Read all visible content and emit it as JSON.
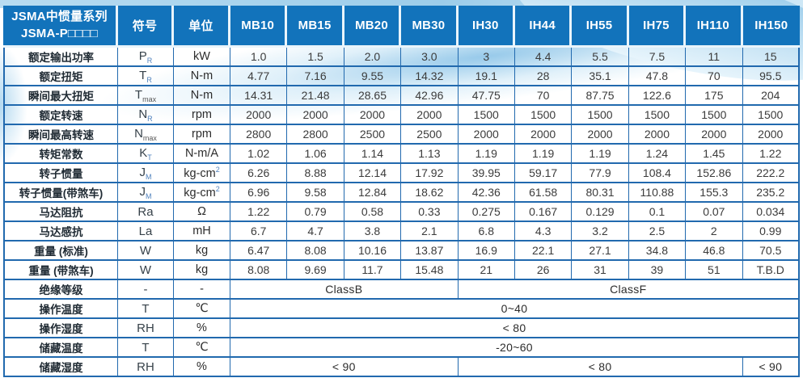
{
  "colors": {
    "header_bg": "#1273bb",
    "grid_line": "#2169ae",
    "wave_light_blue": "#a9d4ee",
    "header_text": "#ffffff",
    "body_text": "#3a3a3a",
    "subscript_blue": "#4f81bd"
  },
  "header": {
    "title_line1": "JSMA中惯量系列",
    "title_line2": "JSMA-P□□□□",
    "symbol_col": "符号",
    "unit_col": "单位",
    "models": [
      "MB10",
      "MB15",
      "MB20",
      "MB30",
      "IH30",
      "IH44",
      "IH55",
      "IH75",
      "IH110",
      "IH150"
    ]
  },
  "rows": [
    {
      "label": "额定输出功率",
      "sym": "P",
      "sub": "R",
      "sub_blue": true,
      "unit": "kW",
      "values": [
        "1.0",
        "1.5",
        "2.0",
        "3.0",
        "3",
        "4.4",
        "5.5",
        "7.5",
        "11",
        "15"
      ]
    },
    {
      "label": "额定扭矩",
      "sym": "T",
      "sub": "R",
      "sub_blue": true,
      "unit": "N-m",
      "values": [
        "4.77",
        "7.16",
        "9.55",
        "14.32",
        "19.1",
        "28",
        "35.1",
        "47.8",
        "70",
        "95.5"
      ]
    },
    {
      "label": "瞬间最大扭矩",
      "sym": "T",
      "sub": "max",
      "sub_blue": false,
      "unit": "N-m",
      "values": [
        "14.31",
        "21.48",
        "28.65",
        "42.96",
        "47.75",
        "70",
        "87.75",
        "122.6",
        "175",
        "204"
      ]
    },
    {
      "label": "额定转速",
      "sym": "N",
      "sub": "R",
      "sub_blue": true,
      "unit": "rpm",
      "values": [
        "2000",
        "2000",
        "2000",
        "2000",
        "1500",
        "1500",
        "1500",
        "1500",
        "1500",
        "1500"
      ]
    },
    {
      "label": "瞬间最高转速",
      "sym": "N",
      "sub": "max",
      "sub_blue": false,
      "unit": "rpm",
      "values": [
        "2800",
        "2800",
        "2500",
        "2500",
        "2000",
        "2000",
        "2000",
        "2000",
        "2000",
        "2000"
      ]
    },
    {
      "label": "转矩常数",
      "sym": "K",
      "sub": "T",
      "sub_blue": true,
      "unit": "N-m/A",
      "values": [
        "1.02",
        "1.06",
        "1.14",
        "1.13",
        "1.19",
        "1.19",
        "1.19",
        "1.24",
        "1.45",
        "1.22"
      ]
    },
    {
      "label": "转子惯量",
      "sym": "J",
      "sub": "M",
      "sub_blue": true,
      "unit": "kg-cm",
      "unit_sup": "2",
      "values": [
        "6.26",
        "8.88",
        "12.14",
        "17.92",
        "39.95",
        "59.17",
        "77.9",
        "108.4",
        "152.86",
        "222.2"
      ]
    },
    {
      "label": "转子惯量(带煞车)",
      "sym": "J",
      "sub": "M",
      "sub_blue": true,
      "unit": "kg-cm",
      "unit_sup": "2",
      "values": [
        "6.96",
        "9.58",
        "12.84",
        "18.62",
        "42.36",
        "61.58",
        "80.31",
        "110.88",
        "155.3",
        "235.2"
      ]
    },
    {
      "label": "马达阻抗",
      "sym": "Ra",
      "unit": "Ω",
      "values": [
        "1.22",
        "0.79",
        "0.58",
        "0.33",
        "0.275",
        "0.167",
        "0.129",
        "0.1",
        "0.07",
        "0.034"
      ]
    },
    {
      "label": "马达感抗",
      "sym": "La",
      "unit": "mH",
      "values": [
        "6.7",
        "4.7",
        "3.8",
        "2.1",
        "6.8",
        "4.3",
        "3.2",
        "2.5",
        "2",
        "0.99"
      ]
    },
    {
      "label": "重量 (标准)",
      "sym": "W",
      "unit": "kg",
      "values": [
        "6.47",
        "8.08",
        "10.16",
        "13.87",
        "16.9",
        "22.1",
        "27.1",
        "34.8",
        "46.8",
        "70.5"
      ]
    },
    {
      "label": "重量 (带煞车)",
      "sym": "W",
      "unit": "kg",
      "values": [
        "8.08",
        "9.69",
        "11.7",
        "15.48",
        "21",
        "26",
        "31",
        "39",
        "51",
        "T.B.D"
      ]
    },
    {
      "label": "绝缘等级",
      "sym": "-",
      "unit": "-",
      "spans": [
        {
          "text": "ClassB",
          "cols": 4
        },
        {
          "text": "ClassF",
          "cols": 6
        }
      ]
    },
    {
      "label": "操作温度",
      "sym": "T",
      "unit": "℃",
      "spans": [
        {
          "text": "0~40",
          "cols": 10
        }
      ]
    },
    {
      "label": "操作湿度",
      "sym": "RH",
      "unit": "%",
      "spans": [
        {
          "text": "< 80",
          "cols": 10
        }
      ]
    },
    {
      "label": "储藏温度",
      "sym": "T",
      "unit": "℃",
      "spans": [
        {
          "text": "-20~60",
          "cols": 10
        }
      ]
    },
    {
      "label": "储藏湿度",
      "sym": "RH",
      "unit": "%",
      "spans": [
        {
          "text": "< 90",
          "cols": 4
        },
        {
          "text": "< 80",
          "cols": 5
        },
        {
          "text": "< 90",
          "cols": 1
        }
      ]
    }
  ]
}
